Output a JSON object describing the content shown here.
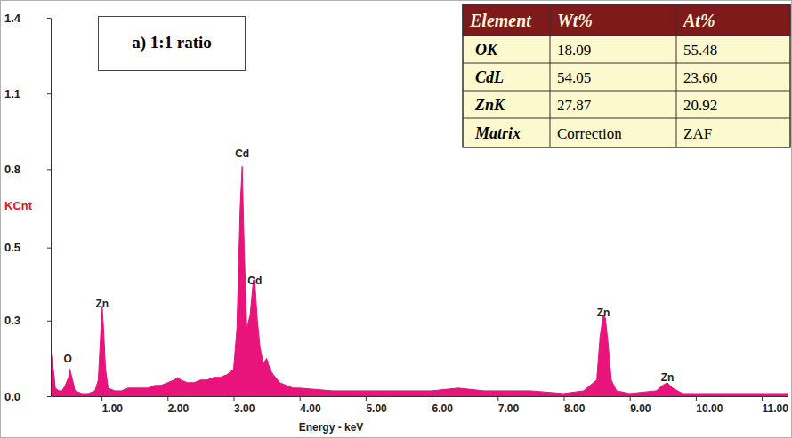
{
  "chart_data": {
    "type": "area",
    "title": "a) 1:1 ratio",
    "xlabel": "Energy - keV",
    "ylabel": "KCnt",
    "color": "#e8137b",
    "grid": false,
    "xlim": [
      0.23,
      11.39
    ],
    "ylim": [
      0,
      1.4
    ],
    "xticks": [
      {
        "value": 1,
        "label": "1.00"
      },
      {
        "value": 2,
        "label": "2.00"
      },
      {
        "value": 3,
        "label": "3.00"
      },
      {
        "value": 4,
        "label": "4.00"
      },
      {
        "value": 5,
        "label": "5.00"
      },
      {
        "value": 6,
        "label": "6.00"
      },
      {
        "value": 7,
        "label": "7.00"
      },
      {
        "value": 8,
        "label": "8.00"
      },
      {
        "value": 9,
        "label": "9.00"
      },
      {
        "value": 10,
        "label": "10.00"
      },
      {
        "value": 11,
        "label": "11.00"
      }
    ],
    "yticks": [
      {
        "value": 0,
        "label": "0.0"
      },
      {
        "value": 0.28,
        "label": "0.3"
      },
      {
        "value": 0.55,
        "label": "0.5"
      },
      {
        "value": 0.84,
        "label": "0.8"
      },
      {
        "value": 1.12,
        "label": "1.1"
      },
      {
        "value": 1.4,
        "label": "1.4"
      }
    ],
    "x": [
      0.23,
      0.26,
      0.3,
      0.35,
      0.4,
      0.45,
      0.5,
      0.52,
      0.55,
      0.6,
      0.7,
      0.8,
      0.9,
      0.95,
      0.98,
      1.01,
      1.03,
      1.06,
      1.1,
      1.2,
      1.3,
      1.4,
      1.5,
      1.6,
      1.7,
      1.8,
      1.9,
      2.0,
      2.1,
      2.15,
      2.2,
      2.3,
      2.4,
      2.5,
      2.6,
      2.7,
      2.8,
      2.9,
      3.0,
      3.05,
      3.1,
      3.13,
      3.16,
      3.2,
      3.25,
      3.3,
      3.32,
      3.36,
      3.4,
      3.45,
      3.5,
      3.55,
      3.6,
      3.7,
      3.8,
      3.9,
      4.0,
      4.5,
      5.0,
      5.5,
      6.0,
      6.4,
      6.8,
      7.0,
      7.5,
      8.0,
      8.3,
      8.5,
      8.55,
      8.6,
      8.63,
      8.67,
      8.72,
      8.8,
      9.0,
      9.4,
      9.5,
      9.57,
      9.65,
      9.8,
      10.0,
      10.5,
      11.0,
      11.39
    ],
    "values": [
      0.17,
      0.12,
      0.03,
      0.02,
      0.02,
      0.04,
      0.07,
      0.1,
      0.07,
      0.02,
      0.01,
      0.01,
      0.02,
      0.06,
      0.2,
      0.33,
      0.25,
      0.1,
      0.03,
      0.02,
      0.02,
      0.03,
      0.03,
      0.03,
      0.03,
      0.04,
      0.04,
      0.05,
      0.06,
      0.07,
      0.06,
      0.05,
      0.05,
      0.06,
      0.06,
      0.07,
      0.07,
      0.08,
      0.1,
      0.25,
      0.7,
      0.85,
      0.55,
      0.25,
      0.3,
      0.43,
      0.43,
      0.28,
      0.18,
      0.12,
      0.14,
      0.1,
      0.08,
      0.05,
      0.04,
      0.03,
      0.03,
      0.02,
      0.02,
      0.02,
      0.02,
      0.03,
      0.02,
      0.02,
      0.02,
      0.01,
      0.02,
      0.06,
      0.22,
      0.3,
      0.29,
      0.2,
      0.06,
      0.02,
      0.01,
      0.02,
      0.04,
      0.05,
      0.03,
      0.01,
      0.01,
      0.01,
      0.01,
      0.01
    ],
    "annotations": [
      {
        "text": "O",
        "x": 0.49,
        "y": 0.125
      },
      {
        "text": "Zn",
        "x": 1.01,
        "y": 0.33
      },
      {
        "text": "Cd",
        "x": 3.13,
        "y": 0.885
      },
      {
        "text": "Cd",
        "x": 3.32,
        "y": 0.415
      },
      {
        "text": "Zn",
        "x": 8.6,
        "y": 0.295
      },
      {
        "text": "Zn",
        "x": 9.57,
        "y": 0.055
      }
    ]
  },
  "table": {
    "header": [
      "Element",
      "Wt%",
      "At%"
    ],
    "rows": [
      [
        "OK",
        "18.09",
        "55.48"
      ],
      [
        "CdL",
        "54.05",
        "23.60"
      ],
      [
        "ZnK",
        "27.87",
        "20.92"
      ],
      [
        "Matrix",
        "Correction",
        "ZAF"
      ]
    ]
  }
}
